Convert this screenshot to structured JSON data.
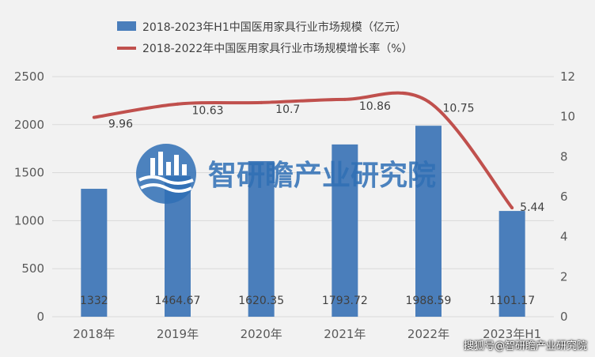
{
  "chart_data": {
    "type": "bar",
    "categories": [
      "2018年",
      "2019年",
      "2020年",
      "2021年",
      "2022年",
      "2023年H1"
    ],
    "series": [
      {
        "name": "2018-2023年H1中国医用家具行业市场规模（亿元）",
        "type": "bar",
        "axis": "left",
        "values": [
          1332,
          1464.67,
          1620.35,
          1793.72,
          1988.59,
          1101.17
        ],
        "labels": [
          "1332",
          "1464.67",
          "1620.35",
          "1793.72",
          "1988.59",
          "1101.17"
        ],
        "color": "#4a7ebb"
      },
      {
        "name": "2018-2022年中国医用家具行业市场规模增长率（%）",
        "type": "line",
        "axis": "right",
        "values": [
          9.96,
          10.63,
          10.7,
          10.86,
          10.75,
          5.44
        ],
        "labels": [
          "9.96",
          "10.63",
          "10.7",
          "10.86",
          "10.75",
          "5.44"
        ],
        "color": "#c0504d"
      }
    ],
    "y_left": {
      "range": [
        0,
        2500
      ],
      "ticks": [
        "0",
        "500",
        "1000",
        "1500",
        "2000",
        "2500"
      ]
    },
    "y_right": {
      "range": [
        0,
        12
      ],
      "ticks": [
        "0",
        "2",
        "4",
        "6",
        "8",
        "10",
        "12"
      ]
    },
    "grid": true,
    "legend_position": "top"
  },
  "watermark": {
    "text": "智研瞻产业研究院"
  },
  "footer": {
    "text": "搜狐号@智研瞻产业研究院"
  }
}
